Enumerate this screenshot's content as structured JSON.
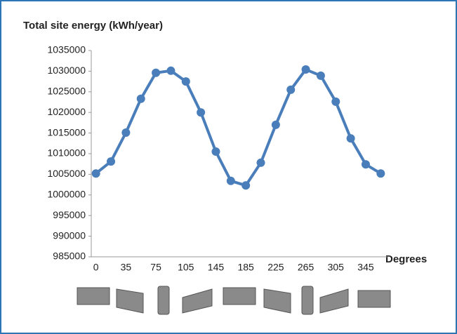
{
  "chart_data": {
    "type": "line",
    "title": "Total site energy (kWh/year)",
    "x_label": "Degrees",
    "categories": [
      "0",
      null,
      "35",
      null,
      "75",
      null,
      "105",
      null,
      "145",
      null,
      "185",
      null,
      "225",
      null,
      "265",
      null,
      "305",
      null,
      "345",
      null
    ],
    "values": [
      1005200,
      1008100,
      1015100,
      1023300,
      1029600,
      1030100,
      1027500,
      1020000,
      1010500,
      1003400,
      1002300,
      1007800,
      1017000,
      1025500,
      1030400,
      1028900,
      1022600,
      1013700,
      1007400,
      1005200
    ],
    "color": "#4a7ebb",
    "ylim": [
      985000,
      1035000
    ],
    "yticks": [
      985000,
      990000,
      995000,
      1000000,
      1005000,
      1010000,
      1015000,
      1020000,
      1025000,
      1030000,
      1035000
    ],
    "grid": false
  }
}
